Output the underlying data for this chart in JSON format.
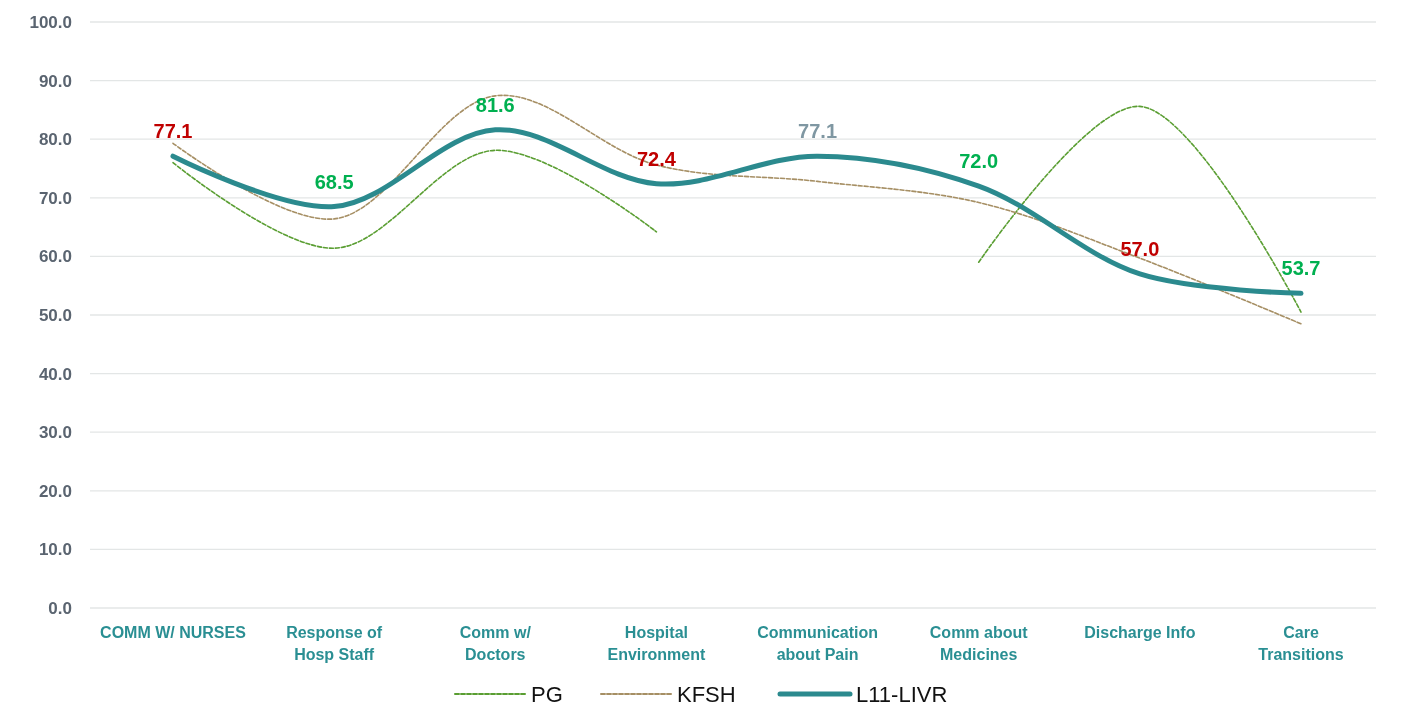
{
  "chart_data": {
    "type": "line",
    "categories": [
      "COMM W/ NURSES",
      "Response of Hosp Staff",
      "Comm w/ Doctors",
      "Hospital Environment",
      "Communication about Pain",
      "Comm about Medicines",
      "Discharge Info",
      "Care Transitions"
    ],
    "series": [
      {
        "name": "PG",
        "color": "#5a9e32",
        "line_style": "dashed",
        "values": [
          76.0,
          61.4,
          78.1,
          64.2,
          null,
          59.0,
          85.6,
          50.5
        ]
      },
      {
        "name": "KFSH",
        "color": "#a68f64",
        "line_style": "dashed",
        "values": [
          79.3,
          66.4,
          87.4,
          75.6,
          72.8,
          69.2,
          59.7,
          48.5
        ]
      },
      {
        "name": "L11-LIVR",
        "color": "#2b8a8e",
        "line_style": "solid",
        "value_labels": [
          "77.1",
          "68.5",
          "81.6",
          "72.4",
          "77.1",
          "72.0",
          "57.0",
          "53.7"
        ],
        "colors": [
          "#c00000",
          "#00b050",
          "#00b050",
          "#c00000",
          "#7f97a2",
          "#00b050",
          "#c00000",
          "#00b050"
        ],
        "values": [
          77.1,
          68.5,
          81.6,
          72.4,
          77.1,
          72.0,
          57.0,
          53.7
        ]
      }
    ],
    "ylim": [
      0,
      100
    ],
    "yticks": [
      {
        "value": 0,
        "label": "0.0"
      },
      {
        "value": 10,
        "label": "10.0"
      },
      {
        "value": 20,
        "label": "20.0"
      },
      {
        "value": 30,
        "label": "30.0"
      },
      {
        "value": 40,
        "label": "40.0"
      },
      {
        "value": 50,
        "label": "50.0"
      },
      {
        "value": 60,
        "label": "60.0"
      },
      {
        "value": 70,
        "label": "70.0"
      },
      {
        "value": 80,
        "label": "80.0"
      },
      {
        "value": 90,
        "label": "90.0"
      },
      {
        "value": 100,
        "label": "100.0"
      }
    ],
    "grid": "y",
    "legend": "bottom",
    "marker": "none"
  }
}
